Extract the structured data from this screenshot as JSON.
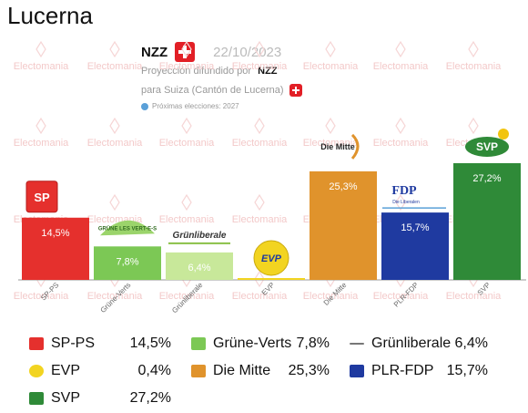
{
  "header": {
    "title": "Lucerna",
    "pollster": "NZZ",
    "date": "22/10/2023",
    "line2_prefix": "Proyección difundido por",
    "line2_source": "NZZ",
    "line3": "para Suiza (Cantón de Lucerna)",
    "line4": "Próximas elecciones: 2027",
    "watermark": "Electomania"
  },
  "colors": {
    "SP-PS": "#e5302d",
    "Grüne-Verts": "#7cc855",
    "Grünliberale": "#c8e89a",
    "EVP": "#f2d421",
    "Die Mitte": "#e0932c",
    "PLR-FDP": "#1f3aa0",
    "SVP": "#2f8a38"
  },
  "chart_data": {
    "type": "bar",
    "categories": [
      "SP-PS",
      "Grüne-Verts",
      "Grünliberale",
      "EVP",
      "Die Mitte",
      "PLR-FDP",
      "SVP"
    ],
    "values": [
      14.5,
      7.8,
      6.4,
      0.4,
      25.3,
      15.7,
      27.2
    ],
    "value_labels": [
      "14,5%",
      "7,8%",
      "6,4%",
      "",
      "25,3%",
      "15,7%",
      "27,2%"
    ],
    "logo_texts": [
      "SP",
      "GRÜNE LES VERT-E-S",
      "Grünliberale",
      "EVP",
      "Die Mitte",
      "FDP Die Liberalen",
      "SVP"
    ],
    "ylim": [
      0,
      27.2
    ]
  },
  "legend": [
    {
      "name": "SP-PS",
      "value": "14,5%"
    },
    {
      "name": "Grüne-Verts",
      "value": "7,8%"
    },
    {
      "name": "Grünliberale",
      "value": "6,4%"
    },
    {
      "name": "EVP",
      "value": "0,4%"
    },
    {
      "name": "Die Mitte",
      "value": "25,3%"
    },
    {
      "name": "PLR-FDP",
      "value": "15,7%"
    },
    {
      "name": "SVP",
      "value": "27,2%"
    }
  ]
}
